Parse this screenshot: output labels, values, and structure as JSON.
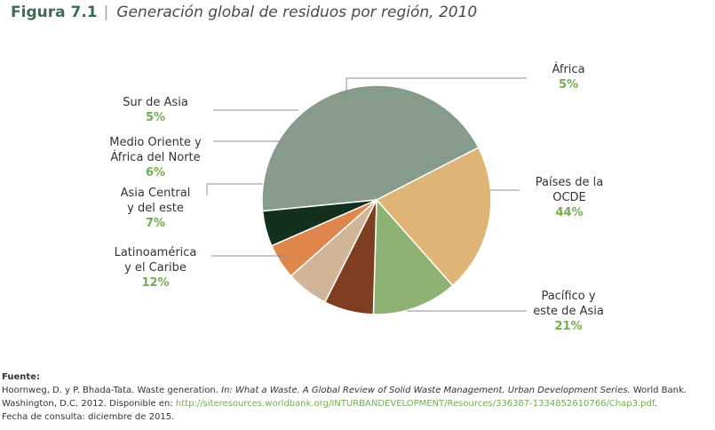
{
  "header": {
    "figure_label": "Figura 7.1",
    "separator": "|",
    "title": "Generación global de residuos por región, 2010"
  },
  "chart_data": {
    "type": "pie",
    "title": "Generación global de residuos por región, 2010",
    "slices": [
      {
        "id": "ocde",
        "label_lines": [
          "Países de la",
          "OCDE"
        ],
        "value": 44,
        "value_label": "44%",
        "color": "#869b8b"
      },
      {
        "id": "pacifico",
        "label_lines": [
          "Pacífico y",
          "este de Asia"
        ],
        "value": 21,
        "value_label": "21%",
        "color": "#deb575"
      },
      {
        "id": "latam",
        "label_lines": [
          "Latinoamérica",
          "y el Caribe"
        ],
        "value": 12,
        "value_label": "12%",
        "color": "#8eb174"
      },
      {
        "id": "asia-central",
        "label_lines": [
          "Asia Central",
          "y del este"
        ],
        "value": 7,
        "value_label": "7%",
        "color": "#7f3e1f"
      },
      {
        "id": "medio-oriente",
        "label_lines": [
          "Medio Oriente y",
          "África del Norte"
        ],
        "value": 6,
        "value_label": "6%",
        "color": "#d2b598"
      },
      {
        "id": "sur-asia",
        "label_lines": [
          "Sur de Asia"
        ],
        "value": 5,
        "value_label": "5%",
        "color": "#df864c"
      },
      {
        "id": "africa",
        "label_lines": [
          "África"
        ],
        "value": 5,
        "value_label": "5%",
        "color": "#13301f"
      }
    ]
  },
  "source": {
    "title": "Fuente:",
    "line1_plain": "Hoornweg, D. y P. Bhada-Tata. Waste generation.",
    "line1_italic": "In: What a Waste. A Global Review of Solid Waste Management. Urban Development Series.",
    "line1_end": "World Bank.",
    "line2_plain": "Washington, D.C. 2012. Disponible en:",
    "link": "http://siteresources.worldbank.org/INTURBANDEVELOPMENT/Resources/336387-1334852610766/Chap3.pdf",
    "line2_end": ".",
    "line3": "Fecha de consulta: diciembre de 2015."
  }
}
